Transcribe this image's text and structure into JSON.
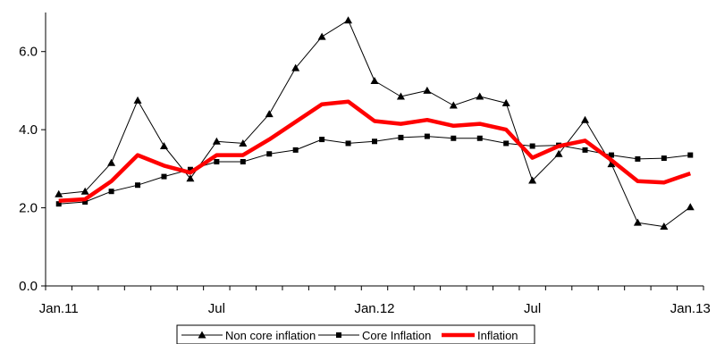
{
  "chart_data": {
    "type": "line",
    "title": "",
    "xlabel": "",
    "ylabel": "",
    "ylim": [
      0,
      7
    ],
    "yticks": [
      0,
      2,
      4,
      6
    ],
    "ytick_labels": [
      "0.0",
      "2.0",
      "4.0",
      "6.0"
    ],
    "grid": false,
    "legend_position": "bottom",
    "x": [
      "Jan.11",
      "Feb.11",
      "Mar.11",
      "Apr.11",
      "May.11",
      "Jun.11",
      "Jul.11",
      "Aug.11",
      "Sep.11",
      "Oct.11",
      "Nov.11",
      "Dec.11",
      "Jan.12",
      "Feb.12",
      "Mar.12",
      "Apr.12",
      "May.12",
      "Jun.12",
      "Jul.12",
      "Aug.12",
      "Sep.12",
      "Oct.12",
      "Nov.12",
      "Dec.12",
      "Jan.13"
    ],
    "x_tick_labels": [
      {
        "index": 0,
        "label": "Jan.11"
      },
      {
        "index": 6,
        "label": "Jul"
      },
      {
        "index": 12,
        "label": "Jan.12"
      },
      {
        "index": 18,
        "label": "Jul"
      },
      {
        "index": 24,
        "label": "Jan.13"
      }
    ],
    "series": [
      {
        "name": "Non core inflation",
        "color": "#000000",
        "marker": "triangle",
        "line_width": "thin",
        "values": [
          2.35,
          2.42,
          3.15,
          4.75,
          3.58,
          2.75,
          3.7,
          3.65,
          4.4,
          5.58,
          6.38,
          6.8,
          5.25,
          4.85,
          5.0,
          4.62,
          4.85,
          4.68,
          2.7,
          3.38,
          4.25,
          3.12,
          1.62,
          1.52,
          2.02
        ]
      },
      {
        "name": "Core Inflation",
        "color": "#000000",
        "marker": "square",
        "line_width": "thin",
        "values": [
          2.1,
          2.15,
          2.42,
          2.58,
          2.8,
          2.98,
          3.18,
          3.18,
          3.38,
          3.48,
          3.75,
          3.65,
          3.7,
          3.8,
          3.83,
          3.78,
          3.78,
          3.65,
          3.58,
          3.6,
          3.48,
          3.35,
          3.25,
          3.27,
          3.35
        ]
      },
      {
        "name": "Inflation",
        "color": "#ff0000",
        "marker": "none",
        "line_width": "thick",
        "values": [
          2.18,
          2.22,
          2.68,
          3.35,
          3.08,
          2.9,
          3.35,
          3.35,
          3.75,
          4.2,
          4.65,
          4.72,
          4.22,
          4.15,
          4.25,
          4.1,
          4.15,
          4.0,
          3.28,
          3.58,
          3.72,
          3.22,
          2.68,
          2.65,
          2.88
        ]
      }
    ]
  }
}
